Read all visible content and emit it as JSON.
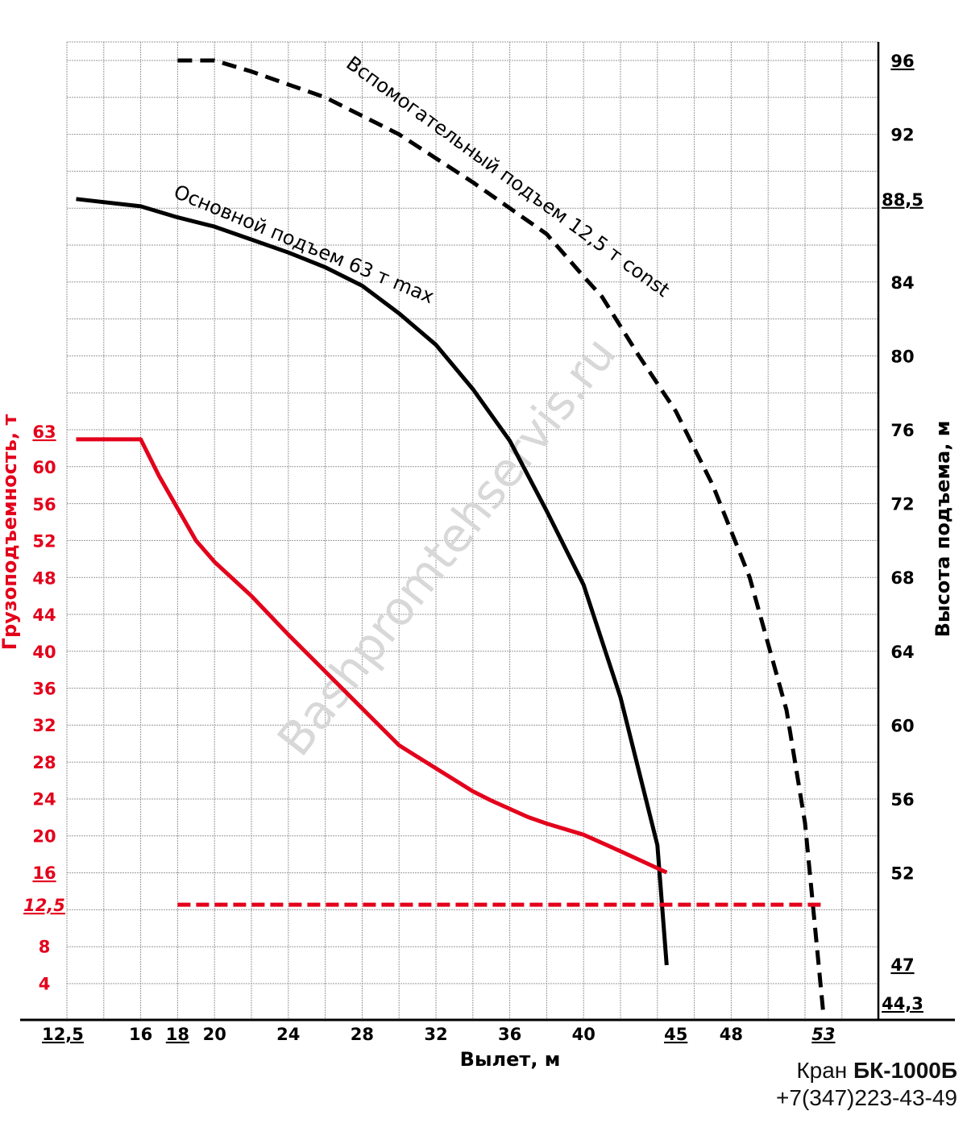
{
  "chart_data": {
    "type": "line",
    "title": "Кран БК-1000Б",
    "contact": "+7(347)223-43-49",
    "watermark": "Bashpromtehservis.ru",
    "xlabel": "Вылет, м",
    "ylabel_left": "Грузоподъемность, т",
    "ylabel_right": "Высота подъема, м",
    "xlim": [
      12,
      56
    ],
    "ylim_left": [
      0,
      106
    ],
    "ylim_right": [
      44,
      97
    ],
    "grid": true,
    "x_ticks": [
      {
        "value": 12.5,
        "label": "12,5",
        "underline": true
      },
      {
        "value": 16,
        "label": "16",
        "underline": false
      },
      {
        "value": 18,
        "label": "18",
        "underline": true
      },
      {
        "value": 20,
        "label": "20",
        "underline": false
      },
      {
        "value": 24,
        "label": "24",
        "underline": false
      },
      {
        "value": 28,
        "label": "28",
        "underline": false
      },
      {
        "value": 32,
        "label": "32",
        "underline": false
      },
      {
        "value": 36,
        "label": "36",
        "underline": false
      },
      {
        "value": 40,
        "label": "40",
        "underline": false
      },
      {
        "value": 45,
        "label": "45",
        "underline": true
      },
      {
        "value": 48,
        "label": "48",
        "underline": false
      },
      {
        "value": 53,
        "label": "53",
        "underline": true,
        "italic": true
      }
    ],
    "left_ticks": [
      {
        "value": 63,
        "label": "63",
        "underline": true
      },
      {
        "value": 60,
        "label": "60"
      },
      {
        "value": 56,
        "label": "56"
      },
      {
        "value": 52,
        "label": "52"
      },
      {
        "value": 48,
        "label": "48"
      },
      {
        "value": 44,
        "label": "44"
      },
      {
        "value": 40,
        "label": "40"
      },
      {
        "value": 36,
        "label": "36"
      },
      {
        "value": 32,
        "label": "32"
      },
      {
        "value": 28,
        "label": "28"
      },
      {
        "value": 24,
        "label": "24"
      },
      {
        "value": 20,
        "label": "20"
      },
      {
        "value": 16,
        "label": "16",
        "underline": true
      },
      {
        "value": 12.5,
        "label": "12,5",
        "underline": true,
        "italic": true
      },
      {
        "value": 8,
        "label": "8"
      },
      {
        "value": 4,
        "label": "4"
      }
    ],
    "right_ticks": [
      {
        "value": 96,
        "label": "96",
        "underline": true
      },
      {
        "value": 92,
        "label": "92"
      },
      {
        "value": 88.5,
        "label": "88,5",
        "underline": true
      },
      {
        "value": 84,
        "label": "84"
      },
      {
        "value": 80,
        "label": "80"
      },
      {
        "value": 76,
        "label": "76"
      },
      {
        "value": 72,
        "label": "72"
      },
      {
        "value": 68,
        "label": "68"
      },
      {
        "value": 64,
        "label": "64"
      },
      {
        "value": 60,
        "label": "60"
      },
      {
        "value": 56,
        "label": "56"
      },
      {
        "value": 52,
        "label": "52"
      },
      {
        "value": 47,
        "label": "47",
        "underline": true
      },
      {
        "value": 44.3,
        "label": "44,3",
        "underline": true
      }
    ],
    "series": [
      {
        "name": "Основной подъем 63 т max",
        "axis": "right",
        "color": "#000000",
        "style": "solid",
        "x": [
          12.5,
          16,
          18,
          20,
          22,
          24,
          26,
          28,
          30,
          32,
          34,
          36,
          38,
          40,
          42,
          43,
          44,
          44.5
        ],
        "y": [
          88.5,
          88.1,
          87.5,
          87,
          86.3,
          85.6,
          84.8,
          83.8,
          82.3,
          80.6,
          78.2,
          75.4,
          71.6,
          67.6,
          61.5,
          57.5,
          53.5,
          47
        ]
      },
      {
        "name": "Вспомогательный подъем 12,5 т const",
        "axis": "right",
        "color": "#000000",
        "style": "dashed",
        "x": [
          18,
          20,
          22,
          24,
          26,
          28,
          30,
          32,
          34,
          36,
          38,
          40,
          41,
          43,
          45,
          47,
          49,
          51,
          52,
          53
        ],
        "y": [
          96,
          96,
          95.4,
          94.7,
          94,
          93,
          92,
          90.7,
          89.4,
          88,
          86.6,
          84.3,
          83.2,
          80,
          77,
          73,
          68,
          60.8,
          54.7,
          44.3
        ]
      },
      {
        "name": "Грузоподъемность (основной подъем)",
        "axis": "left",
        "color": "#e3001b",
        "style": "solid",
        "x": [
          12.5,
          16,
          17,
          18,
          19,
          20,
          22,
          24,
          26,
          28,
          30,
          32,
          34,
          35,
          37,
          38,
          40,
          42,
          44.5
        ],
        "y": [
          63,
          63,
          59,
          55.5,
          52,
          49.7,
          46,
          41.8,
          37.8,
          33.8,
          29.8,
          27.3,
          24.8,
          23.8,
          22,
          21.3,
          20.1,
          18.3,
          16
        ]
      },
      {
        "name": "Грузоподъемность (вспомогательный подъем)",
        "axis": "left",
        "color": "#e3001b",
        "style": "dashed",
        "x": [
          18,
          53
        ],
        "y": [
          12.5,
          12.5
        ]
      }
    ]
  }
}
